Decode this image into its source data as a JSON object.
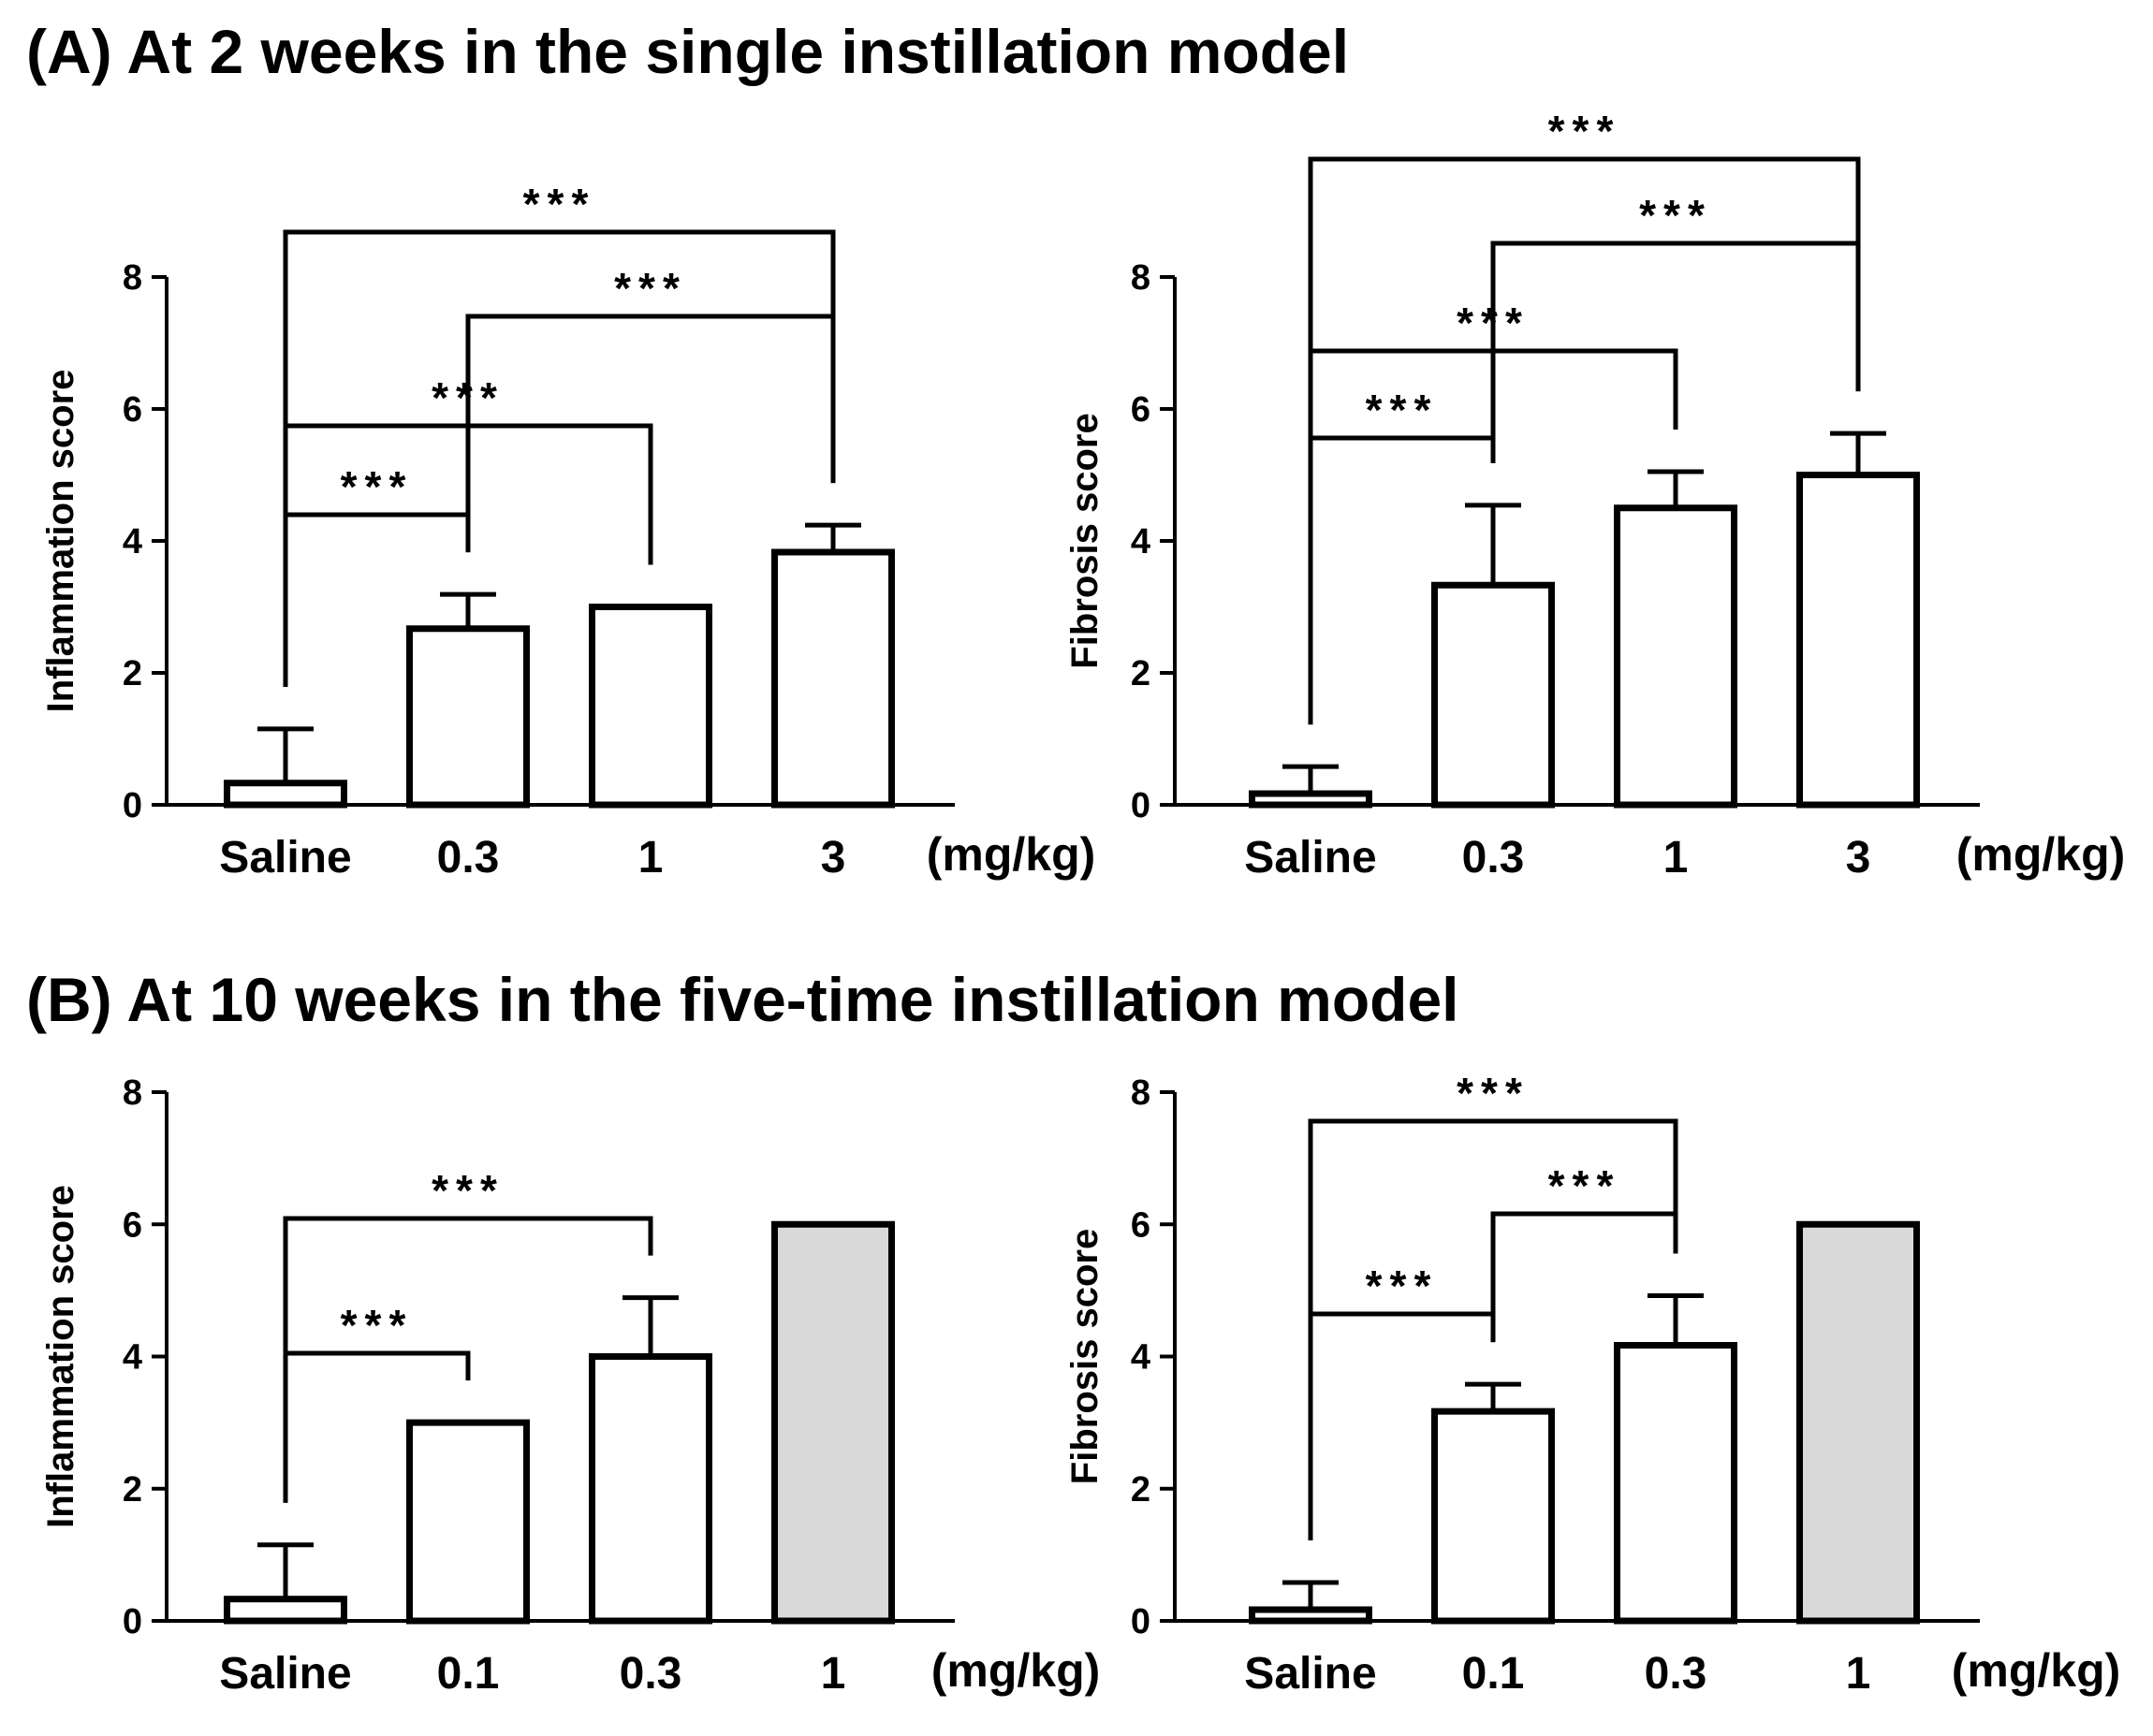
{
  "sections": [
    {
      "id": "A",
      "title": "(A) At 2 weeks in the single instillation model"
    },
    {
      "id": "B",
      "title": "(B) At 10 weeks in the five-time instillation model"
    }
  ],
  "chart_data": [
    {
      "type": "bar",
      "section": "A",
      "categories": [
        "Saline",
        "0.3",
        "1",
        "3"
      ],
      "unit_label": "(mg/kg)",
      "values": [
        0.33,
        2.67,
        3.0,
        3.83
      ],
      "errors": [
        0.82,
        0.52,
        0.0,
        0.41
      ],
      "fills": [
        "#ffffff",
        "#ffffff",
        "#ffffff",
        "#ffffff"
      ],
      "ylabel": "Inflammation score",
      "ylim": [
        0,
        8
      ],
      "yticks": [
        0,
        2,
        4,
        6,
        8
      ],
      "significance": [
        {
          "from": 0,
          "to": 1,
          "label": "***"
        },
        {
          "from": 0,
          "to": 2,
          "label": "***"
        },
        {
          "from": 1,
          "to": 3,
          "label": "***"
        },
        {
          "from": 0,
          "to": 3,
          "label": "***"
        }
      ]
    },
    {
      "type": "bar",
      "section": "A",
      "categories": [
        "Saline",
        "0.3",
        "1",
        "3"
      ],
      "unit_label": "(mg/kg)",
      "values": [
        0.17,
        3.33,
        4.5,
        5.0
      ],
      "errors": [
        0.41,
        1.21,
        0.55,
        0.63
      ],
      "fills": [
        "#ffffff",
        "#ffffff",
        "#ffffff",
        "#ffffff"
      ],
      "ylabel": "Fibrosis score",
      "ylim": [
        0,
        8
      ],
      "yticks": [
        0,
        2,
        4,
        6,
        8
      ],
      "significance": [
        {
          "from": 0,
          "to": 1,
          "label": "***"
        },
        {
          "from": 0,
          "to": 2,
          "label": "***"
        },
        {
          "from": 1,
          "to": 3,
          "label": "***"
        },
        {
          "from": 0,
          "to": 3,
          "label": "***"
        }
      ]
    },
    {
      "type": "bar",
      "section": "B",
      "categories": [
        "Saline",
        "0.1",
        "0.3",
        "1"
      ],
      "unit_label": "(mg/kg)",
      "values": [
        0.33,
        3.0,
        4.0,
        6.0
      ],
      "errors": [
        0.82,
        0.0,
        0.89,
        0.0
      ],
      "fills": [
        "#ffffff",
        "#ffffff",
        "#ffffff",
        "#d9d9d9"
      ],
      "ylabel": "Inflammation score",
      "ylim": [
        0,
        8
      ],
      "yticks": [
        0,
        2,
        4,
        6,
        8
      ],
      "significance": [
        {
          "from": 0,
          "to": 1,
          "label": "***"
        },
        {
          "from": 0,
          "to": 2,
          "label": "***"
        }
      ]
    },
    {
      "type": "bar",
      "section": "B",
      "categories": [
        "Saline",
        "0.1",
        "0.3",
        "1"
      ],
      "unit_label": "(mg/kg)",
      "values": [
        0.17,
        3.17,
        4.17,
        6.0
      ],
      "errors": [
        0.41,
        0.41,
        0.75,
        0.0
      ],
      "fills": [
        "#ffffff",
        "#ffffff",
        "#ffffff",
        "#d9d9d9"
      ],
      "ylabel": "Fibrosis score",
      "ylim": [
        0,
        8
      ],
      "yticks": [
        0,
        2,
        4,
        6,
        8
      ],
      "significance": [
        {
          "from": 0,
          "to": 1,
          "label": "***"
        },
        {
          "from": 1,
          "to": 2,
          "label": "***"
        },
        {
          "from": 0,
          "to": 2,
          "label": "***"
        }
      ]
    }
  ]
}
